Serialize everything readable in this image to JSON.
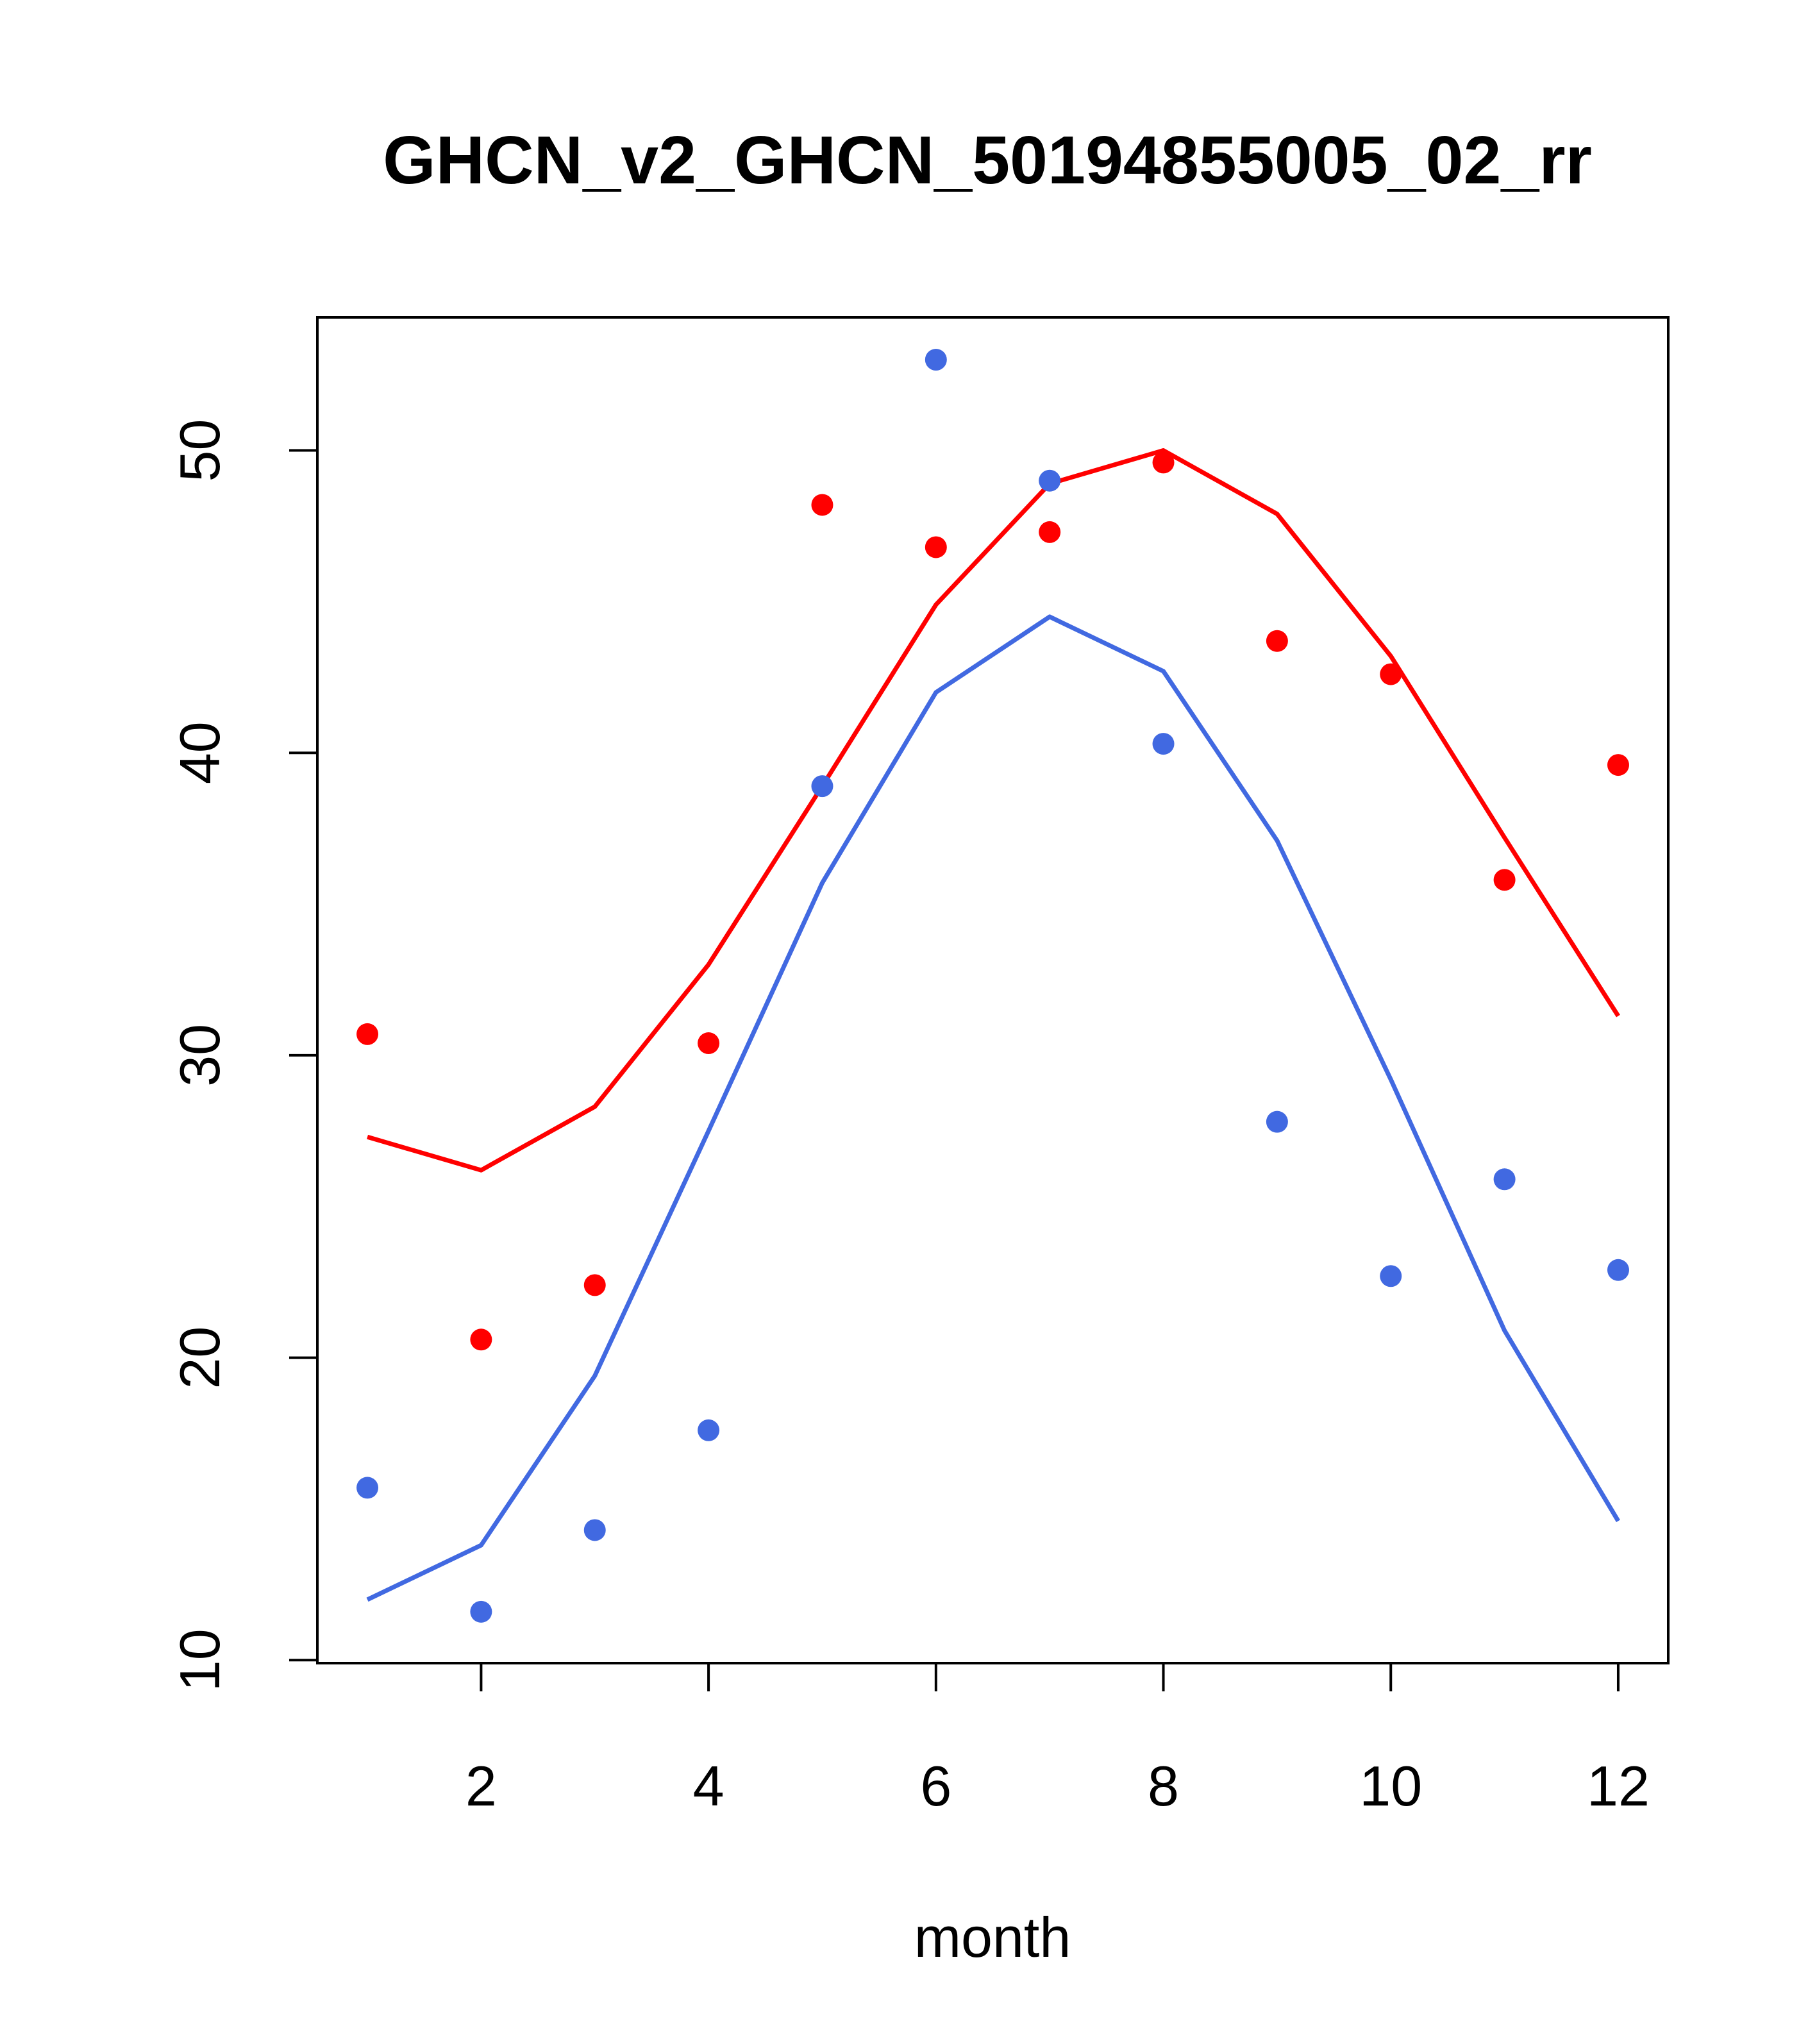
{
  "chart_data": {
    "type": "line",
    "title": "GHCN_v2_GHCN_50194855005_02_rr",
    "xlabel": "month",
    "ylabel": "",
    "xlim": [
      0.56,
      12.44
    ],
    "ylim": [
      9.9,
      54.4
    ],
    "xticks": [
      2,
      4,
      6,
      8,
      10,
      12
    ],
    "yticks": [
      10,
      20,
      30,
      40,
      50
    ],
    "grid": false,
    "legend": "none",
    "x": [
      1,
      2,
      3,
      4,
      5,
      6,
      7,
      8,
      9,
      10,
      11,
      12
    ],
    "series": [
      {
        "color": "#ff0000",
        "line": [
          27.3,
          26.2,
          28.3,
          33.0,
          38.9,
          44.9,
          48.9,
          50.0,
          47.9,
          43.2,
          37.2,
          31.3
        ],
        "points": [
          30.7,
          20.6,
          22.4,
          30.4,
          48.2,
          46.8,
          47.3,
          49.6,
          43.7,
          42.6,
          35.8,
          39.6
        ]
      },
      {
        "color": "#4169e1",
        "line": [
          12.0,
          13.8,
          19.4,
          27.5,
          35.7,
          42.0,
          44.5,
          42.7,
          37.1,
          29.2,
          20.9,
          14.6
        ],
        "points": [
          15.7,
          11.6,
          14.3,
          17.6,
          38.9,
          53.0,
          49.0,
          40.3,
          27.8,
          22.7,
          25.9,
          22.9
        ]
      }
    ]
  }
}
